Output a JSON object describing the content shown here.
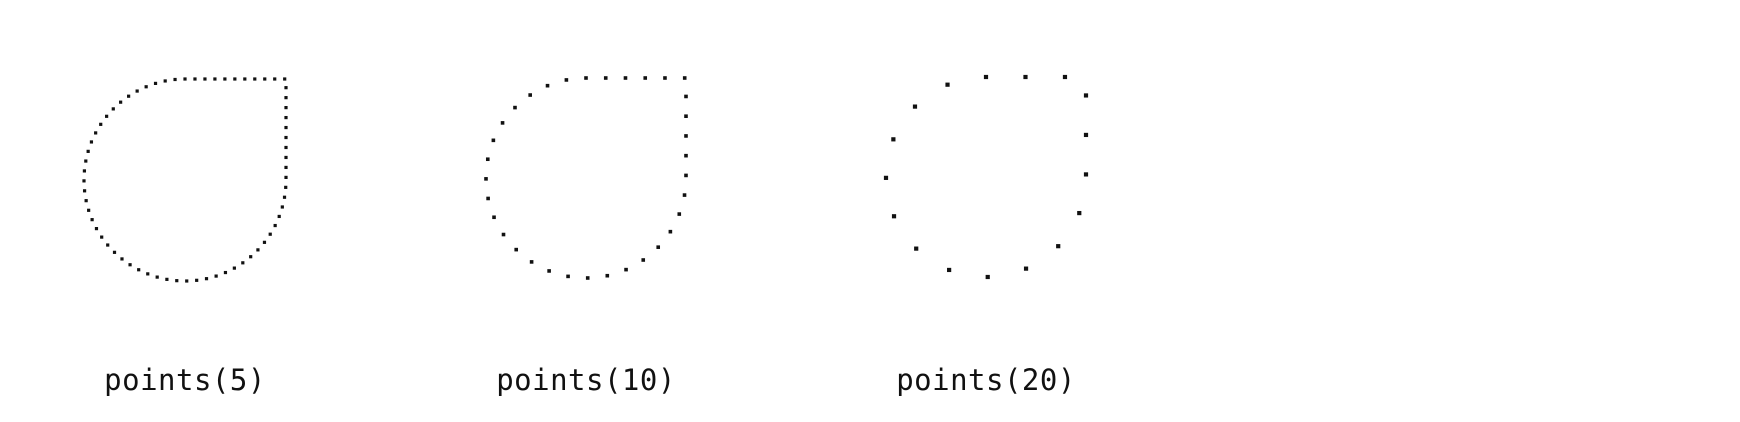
{
  "figure": {
    "ink_color": "#111111",
    "background": "#ffffff",
    "panels": [
      {
        "caption": "points(5)",
        "spacing": 5
      },
      {
        "caption": "points(10)",
        "spacing": 10
      },
      {
        "caption": "points(20)",
        "spacing": 20
      }
    ]
  }
}
